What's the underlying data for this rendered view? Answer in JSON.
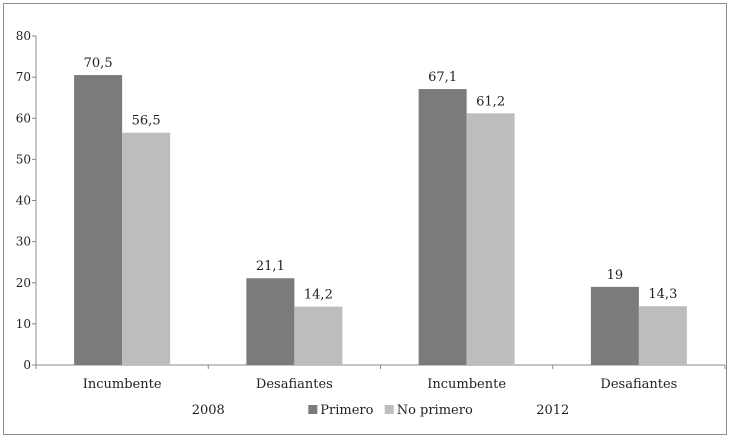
{
  "chart_data": {
    "type": "bar",
    "groups": [
      "2008",
      "2012"
    ],
    "categories": [
      "Incumbente",
      "Desafiantes",
      "Incumbente",
      "Desafiantes"
    ],
    "category_group": [
      0,
      0,
      1,
      1
    ],
    "series": [
      {
        "name": "Primero",
        "values": [
          70.5,
          21.1,
          67.1,
          19
        ],
        "labels": [
          "70,5",
          "21,1",
          "67,1",
          "19"
        ],
        "color": "#7b7b7d"
      },
      {
        "name": "No primero",
        "values": [
          56.5,
          14.2,
          61.2,
          14.3
        ],
        "labels": [
          "56,5",
          "14,2",
          "61,2",
          "14,3"
        ],
        "color": "#bdbdbf"
      }
    ],
    "ylim": [
      0,
      80
    ],
    "yticks": [
      0,
      10,
      20,
      30,
      40,
      50,
      60,
      70,
      80
    ],
    "title": "",
    "xlabel": "",
    "ylabel": "",
    "grid": false,
    "legend_position": "bottom"
  }
}
